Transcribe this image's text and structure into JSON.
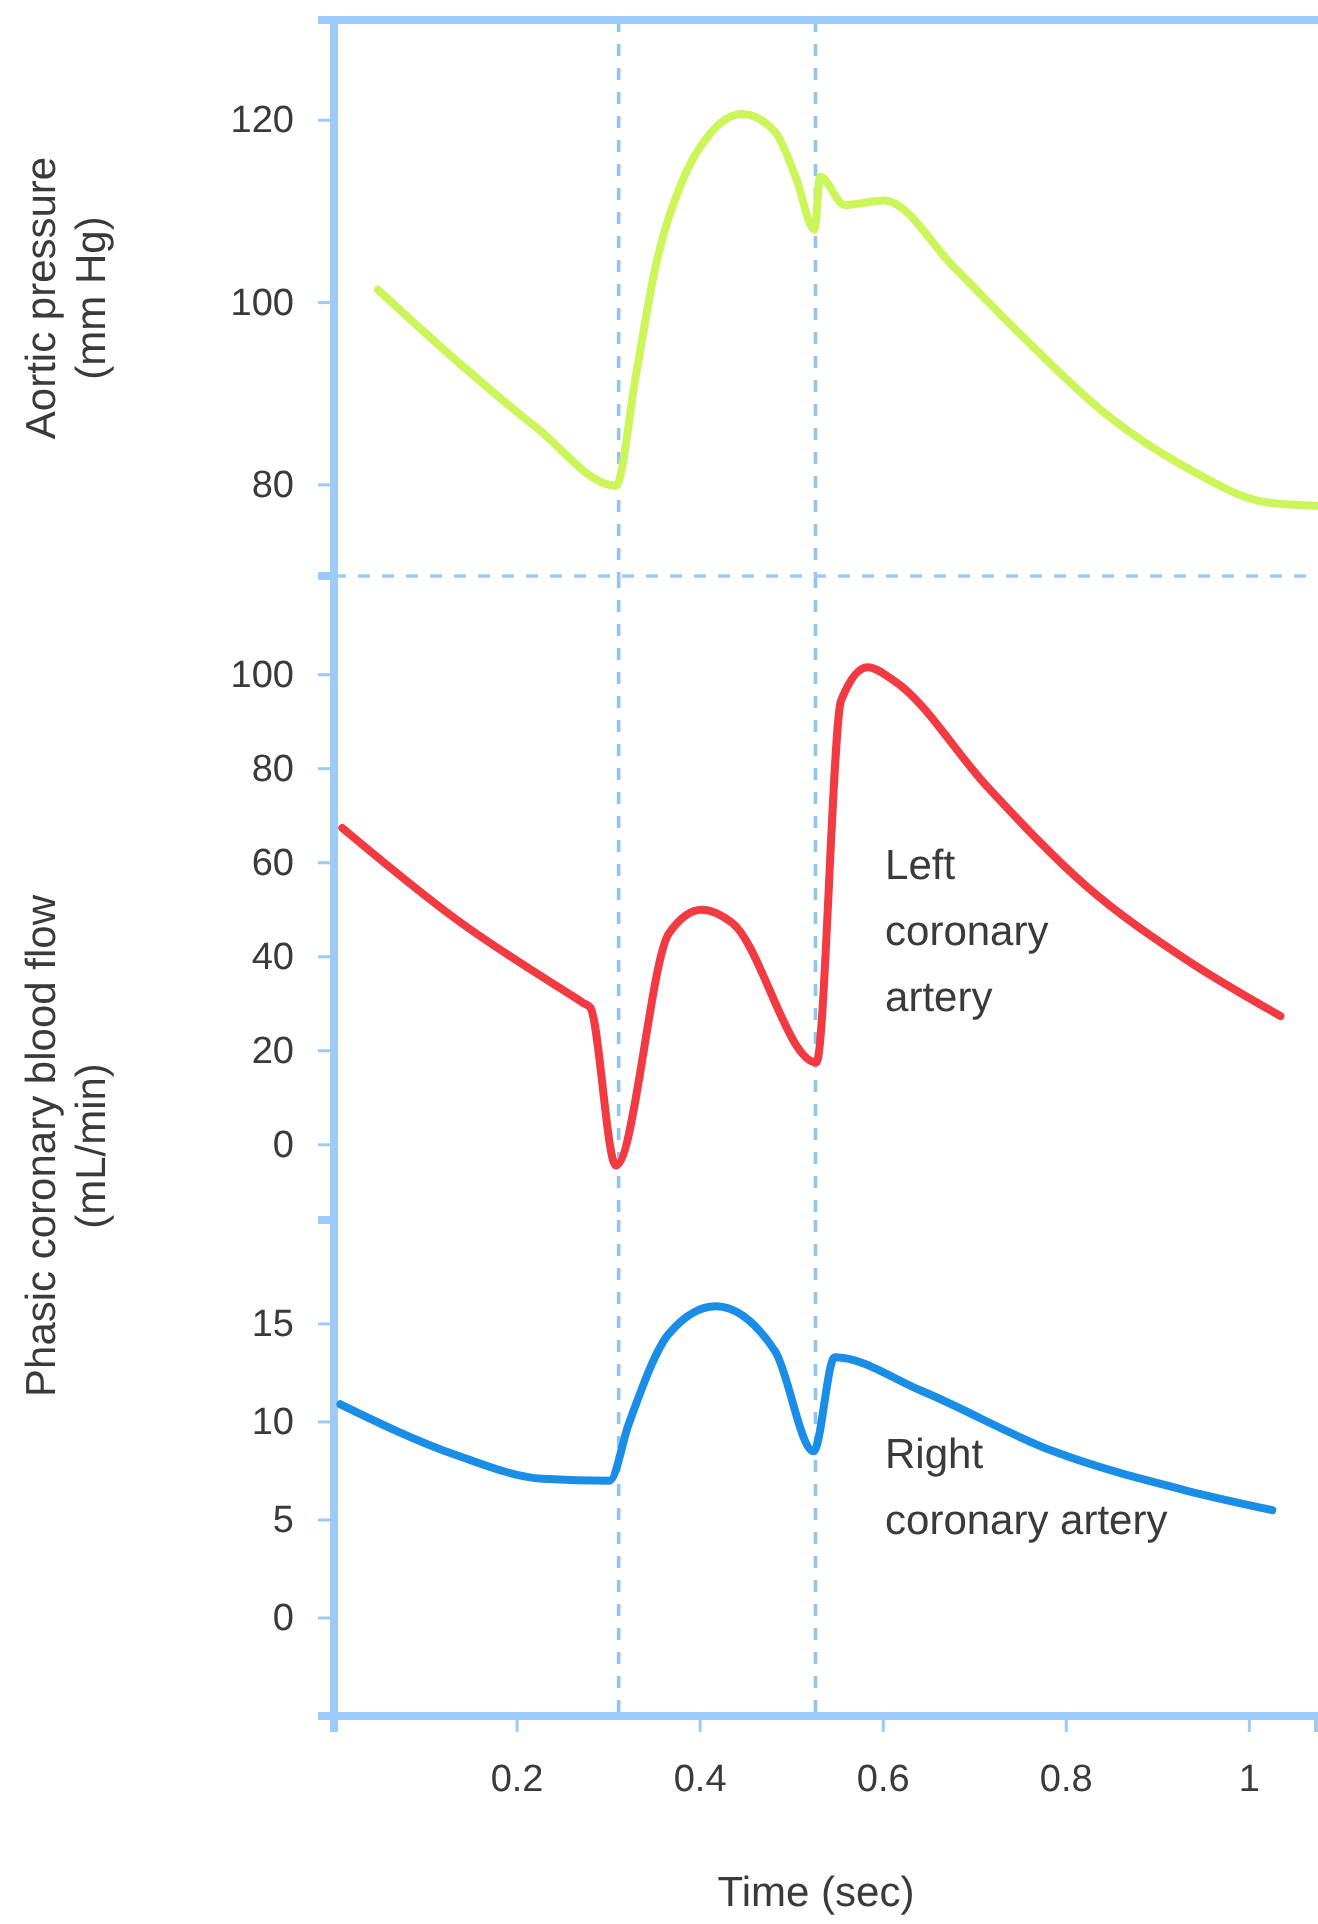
{
  "chart_data": [
    {
      "type": "line",
      "ylabel": "Aortic pressure (mm Hg)",
      "xlim": [
        0,
        1.075
      ],
      "ylim": [
        70,
        131
      ],
      "yticks": [
        80,
        100,
        120
      ],
      "tick_labels": "y",
      "series": [
        {
          "color": "#ccf55a",
          "x": [
            0.048,
            0.134,
            0.221,
            0.308,
            0.33,
            0.351,
            0.38,
            0.409,
            0.446,
            0.482,
            0.505,
            0.525,
            0.531,
            0.558,
            0.601,
            0.678,
            0.75,
            0.844,
            0.931,
            1.018,
            1.074
          ],
          "values": [
            101.4,
            93.6,
            86.3,
            79.9,
            92.1,
            103.8,
            113.2,
            118.3,
            120.7,
            118.7,
            113.6,
            108,
            113.8,
            110.7,
            111.2,
            103.8,
            96.5,
            87.7,
            81.9,
            78.1,
            77.7
          ]
        }
      ],
      "ref_lines": [
        {
          "axis": "x",
          "value": 0.311,
          "color": "#8fc4f5",
          "line_style": "dashed"
        },
        {
          "axis": "x",
          "value": 0.526,
          "color": "#8fc4f5",
          "line_style": "dashed"
        }
      ]
    },
    {
      "type": "line",
      "ylabel": "Phasic coronary blood flow (mL/min)",
      "xlim": [
        0,
        1.075
      ],
      "ylim": [
        -16,
        121
      ],
      "yticks": [
        0,
        20,
        40,
        60,
        80,
        100
      ],
      "tick_labels": "y",
      "series": [
        {
          "name": "Left coronary artery",
          "color": "#f23a42",
          "x": [
            0.009,
            0.134,
            0.272,
            0.28,
            0.308,
            0.366,
            0.402,
            0.435,
            0.527,
            0.554,
            0.583,
            0.612,
            0.714,
            0.822,
            0.931,
            1.034
          ],
          "values": [
            67.4,
            47.9,
            30.2,
            29.2,
            -4.4,
            45,
            50,
            47.2,
            17.5,
            94.5,
            101.6,
            98.7,
            76.1,
            55,
            39.4,
            27.4
          ]
        }
      ],
      "ref_lines": [
        {
          "axis": "x",
          "value": 0.311,
          "color": "#8fc4f5",
          "line_style": "dashed"
        },
        {
          "axis": "x",
          "value": 0.526,
          "color": "#8fc4f5",
          "line_style": "dashed"
        }
      ]
    },
    {
      "type": "line",
      "xlabel": "Time (sec)",
      "xlim": [
        0,
        1.075
      ],
      "xticks": [
        0.2,
        0.4,
        0.6,
        0.8,
        1
      ],
      "ylim": [
        -5,
        20.3
      ],
      "yticks": [
        0,
        5,
        10,
        15
      ],
      "series": [
        {
          "name": "Right coronary artery",
          "color": "#1a8de6",
          "x": [
            0.007,
            0.134,
            0.228,
            0.301,
            0.322,
            0.366,
            0.417,
            0.482,
            0.524,
            0.547,
            0.641,
            0.786,
            0.931,
            1.025
          ],
          "values": [
            10.9,
            8.3,
            7.1,
            7,
            9.9,
            14.5,
            15.9,
            13.6,
            8.5,
            13.3,
            11.6,
            8.5,
            6.5,
            5.5
          ]
        }
      ],
      "ref_lines": [
        {
          "axis": "x",
          "value": 0.311,
          "color": "#8fc4f5",
          "line_style": "dashed"
        },
        {
          "axis": "x",
          "value": 0.526,
          "color": "#8fc4f5",
          "line_style": "dashed"
        }
      ]
    }
  ]
}
